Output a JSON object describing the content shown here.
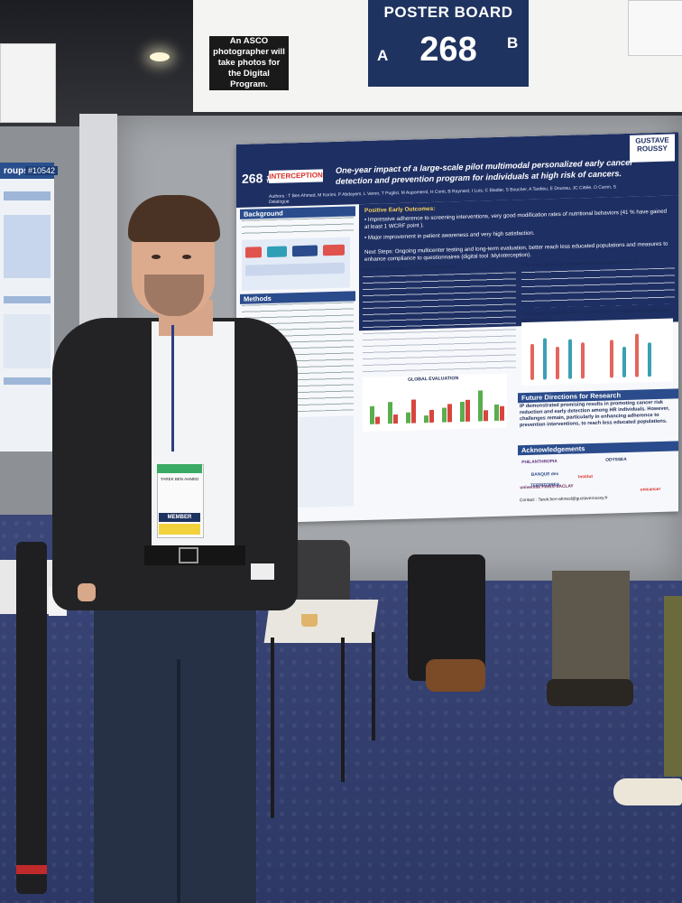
{
  "signage": {
    "asco_notice": "An ASCO photographer will take photos for the Digital Program.",
    "board_title": "POSTER BOARD",
    "board_number": "268",
    "side_a": "A",
    "side_b": "B",
    "left_poster_label": "roups:",
    "left_poster_id": "#10542"
  },
  "poster": {
    "number": "268 #",
    "logo_text": "INTERCEPTION",
    "partner_logo": "GUSTAVE ROUSSY",
    "title": "One-year impact of a large-scale pilot multimodal personalized early cancer detection and prevention program for individuals at high risk of cancers.",
    "authors": "Authors : T Ben Ahmed, M Karimi, P Abdayem, L Veron, T Puglisi, M Aupomerol, H Conti, B Raynard, I Luis, C Bladier, S Boucher, A Tardieu, E Dourieu, JC Cittée, O Caron, S Delalogue",
    "sections": {
      "background": "Background",
      "methods": "Methods",
      "outcomes": "Positive Early Outcomes:",
      "future": "Future Directions for Research",
      "ack": "Acknowledgements",
      "chart_title": "GLOBAL EVALUATION"
    },
    "outcomes_lines": [
      "• Impressive adherence to screening interventions, very good modification rates of nutritional behaviors (41 % have gained at least 1 WCRF point ).",
      "• Major improvement in patient awareness and very high satisfaction.",
      "Next Steps: Ongoing multicenter testing and long-term evaluation, better reach less educated populations and measures to enhance compliance to questionnaires (digital tool :MyInterception)."
    ],
    "followup_screening": "One year follow-up : Screening measures",
    "followup_new_cancer": "One year follow-up: Incidence of new cancer = 1.3 %",
    "perceived": "Perceived knowledge and self-estimation of cancer risk before and after the ODC",
    "future_text": "IP demonstrated promising results in promoting cancer risk reduction and early detection among HR individuals. However, challenges remain, particularly in enhancing adherence to prevention interventions, to reach less educated populations.",
    "contact": "Contact : Tarek.ben-ahmed@gustaveroussy.fr",
    "ack_logos": [
      "PHILANTHROPIA",
      "ODYSSEA",
      "BANQUE des TERRITOIRES",
      "Institut",
      "université PARIS-SACLAY",
      "unicancer"
    ]
  },
  "badge": {
    "name": "TAREK BEN AHMED",
    "role": "MEMBER"
  }
}
